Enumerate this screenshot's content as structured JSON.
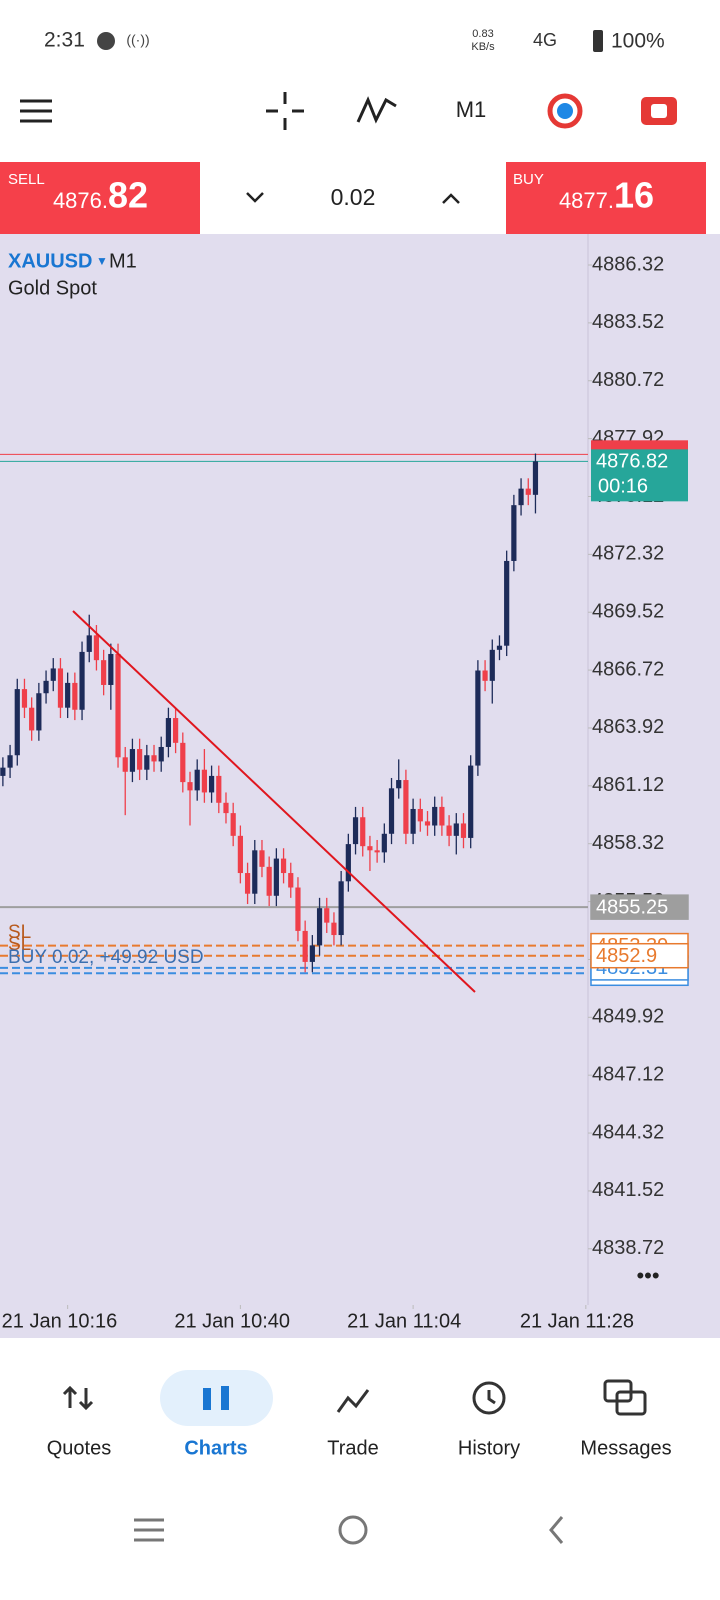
{
  "status_bar": {
    "time": "2:31",
    "speed": "0.83",
    "speed_unit": "KB/s",
    "network": "4G",
    "battery": "100%"
  },
  "toolbar": {
    "timeframe": "M1"
  },
  "trade_panel": {
    "sell": {
      "label": "SELL",
      "price_main": "4876.",
      "price_big": "82"
    },
    "volume": "0.02",
    "buy": {
      "label": "BUY",
      "price_main": "4877.",
      "price_big": "16"
    }
  },
  "chart_data": {
    "type": "candlestick",
    "symbol": "XAUUSD",
    "timeframe": "M1",
    "description": "Gold Spot",
    "open": [
      4861.6,
      4862.0,
      4862.6,
      4865.8,
      4864.9,
      4863.8,
      4865.6,
      4866.2,
      4866.8,
      4864.9,
      4866.1,
      4864.8,
      4867.6,
      4868.4,
      4867.2,
      4866.0,
      4867.5,
      4862.5,
      4861.8,
      4862.9,
      4861.9,
      4862.6,
      4862.3,
      4863.0,
      4864.4,
      4863.2,
      4861.3,
      4860.9,
      4861.9,
      4860.8,
      4861.6,
      4860.3,
      4859.8,
      4858.7,
      4856.9,
      4855.9,
      4858.0,
      4857.2,
      4855.8,
      4857.6,
      4856.9,
      4856.2,
      4854.1,
      4852.6,
      4853.4,
      4855.2,
      4854.5,
      4853.9,
      4856.5,
      4858.3,
      4859.6,
      4858.2,
      4858.0,
      4857.9,
      4858.8,
      4861.0,
      4861.4,
      4858.8,
      4860.0,
      4859.4,
      4859.2,
      4860.1,
      4859.2,
      4858.7,
      4859.3,
      4858.6,
      4862.1,
      4866.7,
      4866.2,
      4867.7,
      4867.9,
      4872.0,
      4874.7,
      4875.5,
      4875.2
    ],
    "high": [
      4862.5,
      4863.1,
      4866.3,
      4866.3,
      4865.4,
      4866.1,
      4866.7,
      4867.3,
      4867.3,
      4866.6,
      4866.6,
      4868.1,
      4869.4,
      4868.9,
      4867.7,
      4868.0,
      4868.0,
      4863.0,
      4863.4,
      4863.4,
      4863.1,
      4863.1,
      4863.5,
      4864.9,
      4864.9,
      4863.7,
      4861.8,
      4862.4,
      4862.9,
      4862.1,
      4862.1,
      4860.8,
      4860.3,
      4859.2,
      4857.4,
      4858.5,
      4858.5,
      4857.7,
      4858.1,
      4858.1,
      4857.4,
      4856.7,
      4854.6,
      4853.9,
      4855.7,
      4855.7,
      4855.0,
      4857.0,
      4858.8,
      4860.1,
      4860.1,
      4858.7,
      4858.5,
      4859.3,
      4861.5,
      4862.4,
      4861.9,
      4860.5,
      4860.5,
      4859.9,
      4860.6,
      4860.6,
      4859.7,
      4859.8,
      4859.8,
      4862.6,
      4867.2,
      4867.2,
      4868.2,
      4868.4,
      4872.5,
      4875.2,
      4876.0,
      4876.0,
      4877.2
    ],
    "low": [
      4861.1,
      4861.5,
      4862.1,
      4864.4,
      4863.3,
      4863.3,
      4865.1,
      4865.7,
      4864.4,
      4864.4,
      4864.3,
      4864.3,
      4867.1,
      4866.7,
      4865.5,
      4864.8,
      4862.0,
      4859.7,
      4861.3,
      4861.4,
      4861.4,
      4861.8,
      4861.8,
      4862.5,
      4862.7,
      4860.8,
      4859.2,
      4860.4,
      4860.3,
      4860.3,
      4859.8,
      4859.3,
      4858.2,
      4856.4,
      4855.4,
      4855.4,
      4856.7,
      4855.3,
      4855.3,
      4856.4,
      4855.7,
      4853.6,
      4852.1,
      4852.1,
      4852.9,
      4854.0,
      4853.4,
      4853.4,
      4856.0,
      4857.8,
      4857.7,
      4857.0,
      4857.4,
      4857.4,
      4858.3,
      4860.5,
      4858.3,
      4858.3,
      4858.9,
      4858.7,
      4858.7,
      4858.7,
      4858.2,
      4857.8,
      4858.1,
      4858.1,
      4861.6,
      4865.7,
      4865.1,
      4867.2,
      4867.4,
      4871.5,
      4874.2,
      4874.7,
      4874.3
    ],
    "close": [
      4862.0,
      4862.6,
      4865.8,
      4864.9,
      4863.8,
      4865.6,
      4866.2,
      4866.8,
      4864.9,
      4866.1,
      4864.8,
      4867.6,
      4868.4,
      4867.2,
      4866.0,
      4867.5,
      4862.5,
      4861.8,
      4862.9,
      4861.9,
      4862.6,
      4862.3,
      4863.0,
      4864.4,
      4863.2,
      4861.3,
      4860.9,
      4861.9,
      4860.8,
      4861.6,
      4860.3,
      4859.8,
      4858.7,
      4856.9,
      4855.9,
      4858.0,
      4857.2,
      4855.8,
      4857.6,
      4856.9,
      4856.2,
      4854.1,
      4852.6,
      4853.4,
      4855.2,
      4854.5,
      4853.9,
      4856.5,
      4858.3,
      4859.6,
      4858.2,
      4858.0,
      4857.9,
      4858.8,
      4861.0,
      4861.4,
      4858.8,
      4860.0,
      4859.4,
      4859.2,
      4860.1,
      4859.2,
      4858.7,
      4859.3,
      4858.6,
      4862.1,
      4866.7,
      4866.2,
      4867.7,
      4867.9,
      4872.0,
      4874.7,
      4875.5,
      4875.2,
      4876.82
    ],
    "xlim": [
      -0.4,
      81.3
    ],
    "xticks": [
      {
        "value": 9,
        "label": "21 Jan 10:16"
      },
      {
        "value": 33,
        "label": "21 Jan 10:40"
      },
      {
        "value": 57,
        "label": "21 Jan 11:04"
      },
      {
        "value": 81,
        "label": "21 Jan 11:28"
      }
    ],
    "ylim": [
      4836.0,
      4887.82
    ],
    "yticks": [
      4886.32,
      4883.52,
      4880.72,
      4877.92,
      4875.12,
      4872.32,
      4869.52,
      4866.72,
      4863.92,
      4861.12,
      4858.32,
      4855.52,
      4852.72,
      4849.92,
      4847.12,
      4844.32,
      4841.52,
      4838.72
    ],
    "bull_color": "#1d2b59",
    "bear_color": "#ef3f4a",
    "bid": {
      "value": 4876.82,
      "color": "#26a69a",
      "timer": "00:16"
    },
    "ask": {
      "value": 4877.16,
      "color": "#ef3f4a"
    },
    "levels": [
      {
        "value": 4855.25,
        "color": "#9e9e9e",
        "dash": false
      },
      {
        "value": 4853.39,
        "color": "#e87a2e",
        "dash": true
      },
      {
        "value": 4852.05,
        "color": "#3b8de0",
        "dash": true
      },
      {
        "value": 4852.31,
        "color": "#3b8de0",
        "dash": true
      },
      {
        "value": 4852.9,
        "color": "#e87a2e",
        "dash": true
      }
    ],
    "orders": [
      {
        "text": "SL"
      },
      {
        "text": "SL"
      },
      {
        "text": "BUY 0.02, +49.92 USD"
      }
    ]
  },
  "bottom_nav": {
    "items": [
      "Quotes",
      "Charts",
      "Trade",
      "History",
      "Messages"
    ]
  }
}
